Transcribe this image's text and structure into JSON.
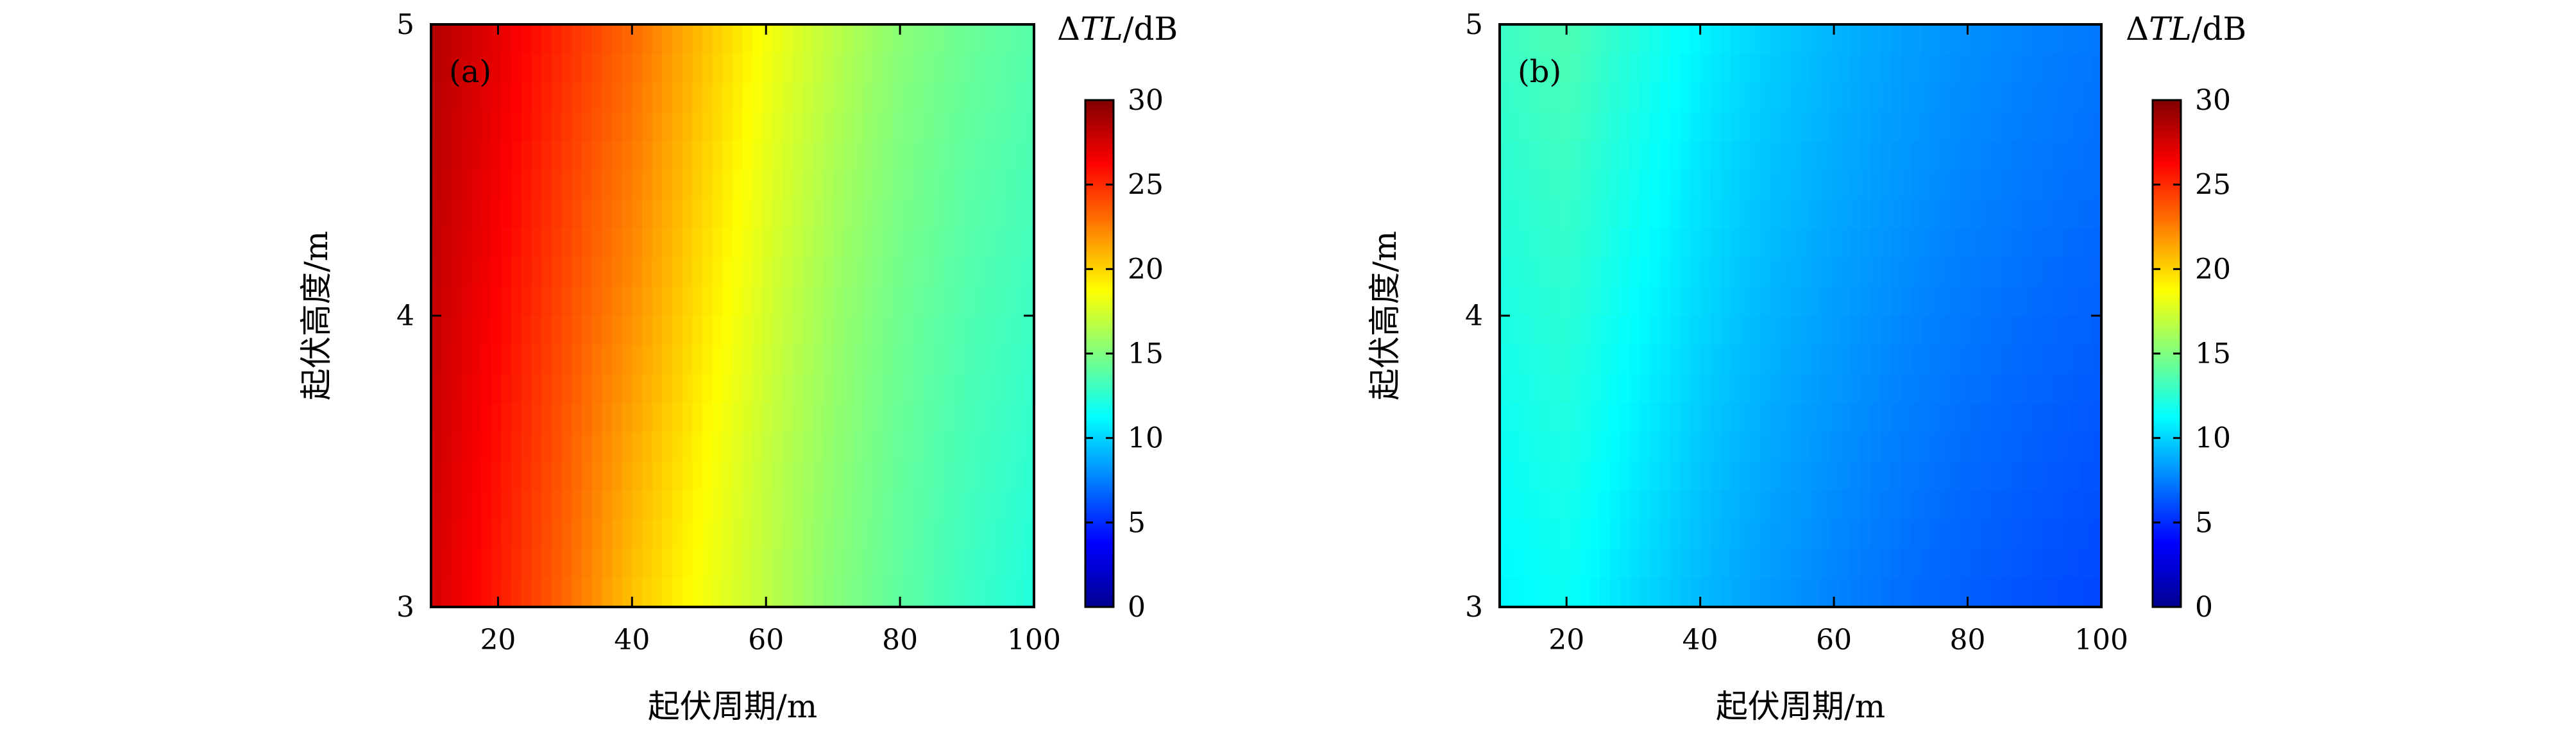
{
  "chart_data": [
    {
      "type": "heatmap",
      "panel_label": "(a)",
      "xlabel": "起伏周期/m",
      "ylabel": "起伏高度/m",
      "xlim": [
        10,
        100
      ],
      "ylim": [
        3,
        5
      ],
      "xticks": [
        20,
        40,
        60,
        80,
        100
      ],
      "yticks": [
        3,
        4,
        5
      ],
      "colorbar": {
        "title_prefix": "Δ",
        "title_var": "TL",
        "title_unit": "/dB",
        "range": [
          0,
          30
        ],
        "ticks": [
          0,
          5,
          10,
          15,
          20,
          25,
          30
        ],
        "colormap": "jet"
      },
      "x": [
        10,
        20,
        30,
        40,
        50,
        60,
        70,
        80,
        90,
        100
      ],
      "y": [
        3,
        3.5,
        4,
        4.5,
        5
      ],
      "values": [
        [
          27.5,
          25.5,
          23.2,
          20.5,
          18.5,
          16.8,
          15.2,
          14.0,
          13.0,
          12.2
        ],
        [
          27.8,
          25.8,
          23.6,
          21.2,
          19.0,
          17.0,
          15.5,
          14.2,
          13.3,
          12.6
        ],
        [
          28.0,
          26.2,
          24.0,
          22.0,
          19.6,
          17.5,
          15.8,
          14.5,
          13.6,
          13.0
        ],
        [
          28.3,
          26.6,
          24.5,
          22.6,
          20.2,
          18.0,
          16.3,
          14.9,
          14.0,
          13.4
        ],
        [
          28.5,
          27.0,
          25.0,
          23.2,
          20.8,
          18.5,
          16.8,
          15.3,
          14.4,
          13.8
        ]
      ]
    },
    {
      "type": "heatmap",
      "panel_label": "(b)",
      "xlabel": "起伏周期/m",
      "ylabel": "起伏高度/m",
      "xlim": [
        10,
        100
      ],
      "ylim": [
        3,
        5
      ],
      "xticks": [
        20,
        40,
        60,
        80,
        100
      ],
      "yticks": [
        3,
        4,
        5
      ],
      "colorbar": {
        "title_prefix": "Δ",
        "title_var": "TL",
        "title_unit": "/dB",
        "range": [
          0,
          30
        ],
        "ticks": [
          0,
          5,
          10,
          15,
          20,
          25,
          30
        ],
        "colormap": "jet"
      },
      "x": [
        10,
        20,
        30,
        40,
        50,
        60,
        70,
        80,
        90,
        100
      ],
      "y": [
        3,
        3.5,
        4,
        4.5,
        5
      ],
      "values": [
        [
          11.0,
          11.5,
          10.2,
          9.2,
          8.3,
          7.6,
          7.0,
          6.5,
          6.1,
          5.8
        ],
        [
          11.5,
          12.0,
          10.8,
          9.6,
          8.7,
          8.0,
          7.4,
          6.9,
          6.5,
          6.2
        ],
        [
          12.0,
          12.5,
          11.3,
          10.1,
          9.1,
          8.4,
          7.8,
          7.3,
          6.9,
          6.6
        ],
        [
          12.5,
          13.0,
          11.8,
          10.5,
          9.5,
          8.8,
          8.2,
          7.7,
          7.3,
          7.0
        ],
        [
          13.0,
          13.6,
          12.3,
          11.0,
          9.9,
          9.1,
          8.5,
          8.0,
          7.6,
          7.3
        ]
      ]
    }
  ]
}
